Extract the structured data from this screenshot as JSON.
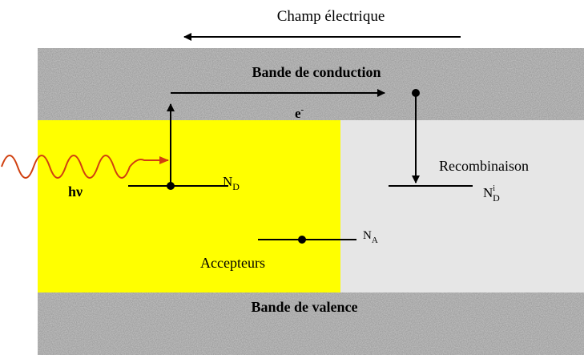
{
  "field_label": "Champ électrique",
  "conduction_band": "Bande de conduction",
  "valence_band": "Bande de valence",
  "electron": {
    "label": "e",
    "sup": "-"
  },
  "photon": "hν",
  "donor": {
    "label": "N",
    "sub": "D"
  },
  "recombination": "Recombinaison",
  "donor_prime": {
    "label": "N",
    "sup": "i",
    "sub": "D"
  },
  "acceptor": {
    "label": "N",
    "sub": "A"
  },
  "acceptors": "Accepteurs"
}
